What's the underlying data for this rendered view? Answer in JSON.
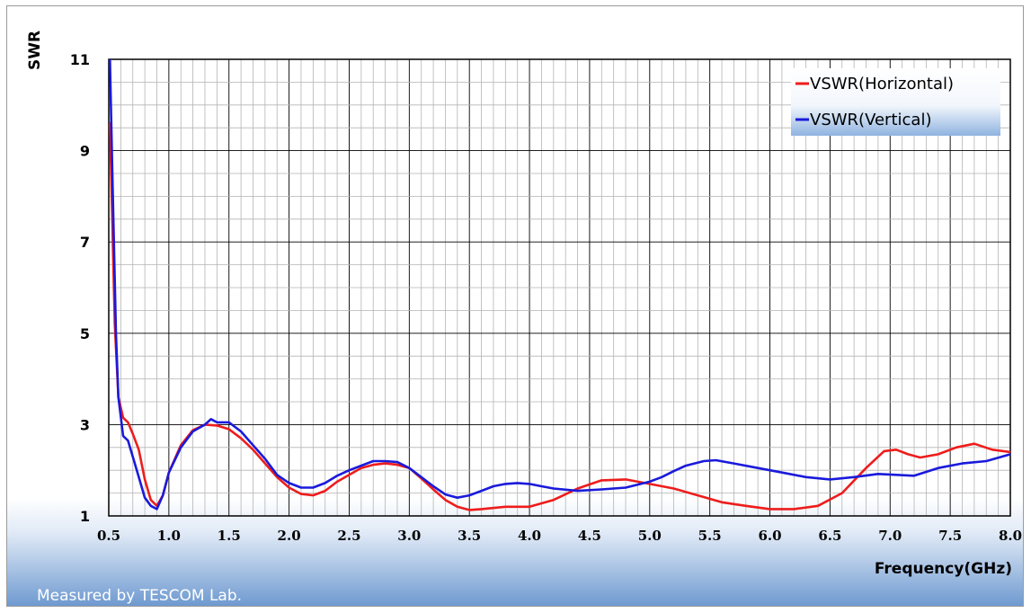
{
  "footer_note": "Measured by TESCOM Lab.",
  "chart_data": {
    "type": "line",
    "title": "",
    "xlabel": "Frequency(GHz)",
    "ylabel": "SWR",
    "xlim": [
      0.5,
      8.0
    ],
    "ylim": [
      1,
      11
    ],
    "x_ticks": [
      0.5,
      1.0,
      1.5,
      2.0,
      2.5,
      3.0,
      3.5,
      4.0,
      4.5,
      5.0,
      5.5,
      6.0,
      6.5,
      7.0,
      7.5,
      8.0
    ],
    "x_tick_labels": [
      "0.5",
      "1.0",
      "1.5",
      "2.0",
      "2.5",
      "3.0",
      "3.5",
      "4.0",
      "4.5",
      "5.0",
      "5.5",
      "6.0",
      "6.5",
      "7.0",
      "7.5",
      "8.0"
    ],
    "y_ticks": [
      1,
      3,
      5,
      7,
      9,
      11
    ],
    "y_tick_labels": [
      "1",
      "3",
      "5",
      "7",
      "9",
      "11"
    ],
    "grid": true,
    "legend_position": "top-right",
    "series": [
      {
        "name": "VSWR(Horizontal)",
        "color": "#ee1c1c",
        "points": [
          [
            0.51,
            9.6
          ],
          [
            0.55,
            5.2
          ],
          [
            0.58,
            3.6
          ],
          [
            0.62,
            3.15
          ],
          [
            0.66,
            3.05
          ],
          [
            0.7,
            2.8
          ],
          [
            0.75,
            2.45
          ],
          [
            0.8,
            1.8
          ],
          [
            0.85,
            1.35
          ],
          [
            0.9,
            1.22
          ],
          [
            0.95,
            1.45
          ],
          [
            1.0,
            1.95
          ],
          [
            1.1,
            2.55
          ],
          [
            1.2,
            2.88
          ],
          [
            1.3,
            3.0
          ],
          [
            1.4,
            2.98
          ],
          [
            1.5,
            2.9
          ],
          [
            1.6,
            2.7
          ],
          [
            1.7,
            2.45
          ],
          [
            1.8,
            2.15
          ],
          [
            1.9,
            1.85
          ],
          [
            2.0,
            1.62
          ],
          [
            2.1,
            1.48
          ],
          [
            2.2,
            1.45
          ],
          [
            2.3,
            1.55
          ],
          [
            2.4,
            1.75
          ],
          [
            2.5,
            1.9
          ],
          [
            2.6,
            2.05
          ],
          [
            2.7,
            2.12
          ],
          [
            2.8,
            2.15
          ],
          [
            2.9,
            2.12
          ],
          [
            3.0,
            2.05
          ],
          [
            3.1,
            1.82
          ],
          [
            3.2,
            1.58
          ],
          [
            3.3,
            1.35
          ],
          [
            3.4,
            1.2
          ],
          [
            3.5,
            1.13
          ],
          [
            3.6,
            1.15
          ],
          [
            3.8,
            1.2
          ],
          [
            4.0,
            1.2
          ],
          [
            4.2,
            1.35
          ],
          [
            4.4,
            1.6
          ],
          [
            4.6,
            1.78
          ],
          [
            4.8,
            1.8
          ],
          [
            5.0,
            1.7
          ],
          [
            5.2,
            1.6
          ],
          [
            5.4,
            1.45
          ],
          [
            5.6,
            1.3
          ],
          [
            5.8,
            1.22
          ],
          [
            6.0,
            1.15
          ],
          [
            6.2,
            1.15
          ],
          [
            6.4,
            1.22
          ],
          [
            6.6,
            1.5
          ],
          [
            6.8,
            2.05
          ],
          [
            6.95,
            2.42
          ],
          [
            7.05,
            2.45
          ],
          [
            7.15,
            2.35
          ],
          [
            7.25,
            2.28
          ],
          [
            7.4,
            2.35
          ],
          [
            7.55,
            2.5
          ],
          [
            7.7,
            2.58
          ],
          [
            7.85,
            2.45
          ],
          [
            8.0,
            2.4
          ]
        ]
      },
      {
        "name": "VSWR(Vertical)",
        "color": "#1a1adb",
        "points": [
          [
            0.51,
            11.0
          ],
          [
            0.53,
            8.5
          ],
          [
            0.56,
            5.0
          ],
          [
            0.58,
            3.6
          ],
          [
            0.62,
            2.75
          ],
          [
            0.66,
            2.65
          ],
          [
            0.7,
            2.3
          ],
          [
            0.75,
            1.85
          ],
          [
            0.8,
            1.4
          ],
          [
            0.85,
            1.22
          ],
          [
            0.9,
            1.15
          ],
          [
            0.95,
            1.45
          ],
          [
            1.0,
            1.95
          ],
          [
            1.1,
            2.5
          ],
          [
            1.2,
            2.85
          ],
          [
            1.3,
            3.0
          ],
          [
            1.35,
            3.12
          ],
          [
            1.4,
            3.05
          ],
          [
            1.5,
            3.05
          ],
          [
            1.6,
            2.85
          ],
          [
            1.7,
            2.55
          ],
          [
            1.8,
            2.25
          ],
          [
            1.9,
            1.9
          ],
          [
            2.0,
            1.72
          ],
          [
            2.1,
            1.62
          ],
          [
            2.2,
            1.62
          ],
          [
            2.3,
            1.72
          ],
          [
            2.4,
            1.88
          ],
          [
            2.5,
            2.0
          ],
          [
            2.6,
            2.1
          ],
          [
            2.7,
            2.2
          ],
          [
            2.8,
            2.2
          ],
          [
            2.9,
            2.18
          ],
          [
            3.0,
            2.05
          ],
          [
            3.1,
            1.85
          ],
          [
            3.2,
            1.65
          ],
          [
            3.3,
            1.47
          ],
          [
            3.4,
            1.4
          ],
          [
            3.5,
            1.45
          ],
          [
            3.6,
            1.55
          ],
          [
            3.7,
            1.65
          ],
          [
            3.8,
            1.7
          ],
          [
            3.9,
            1.72
          ],
          [
            4.0,
            1.7
          ],
          [
            4.1,
            1.65
          ],
          [
            4.2,
            1.6
          ],
          [
            4.4,
            1.55
          ],
          [
            4.6,
            1.58
          ],
          [
            4.8,
            1.62
          ],
          [
            5.0,
            1.75
          ],
          [
            5.1,
            1.85
          ],
          [
            5.2,
            1.98
          ],
          [
            5.3,
            2.1
          ],
          [
            5.45,
            2.2
          ],
          [
            5.55,
            2.22
          ],
          [
            5.7,
            2.15
          ],
          [
            5.9,
            2.05
          ],
          [
            6.1,
            1.95
          ],
          [
            6.3,
            1.85
          ],
          [
            6.5,
            1.8
          ],
          [
            6.7,
            1.85
          ],
          [
            6.9,
            1.92
          ],
          [
            7.05,
            1.9
          ],
          [
            7.2,
            1.88
          ],
          [
            7.4,
            2.05
          ],
          [
            7.6,
            2.15
          ],
          [
            7.8,
            2.2
          ],
          [
            8.0,
            2.35
          ]
        ]
      }
    ]
  }
}
